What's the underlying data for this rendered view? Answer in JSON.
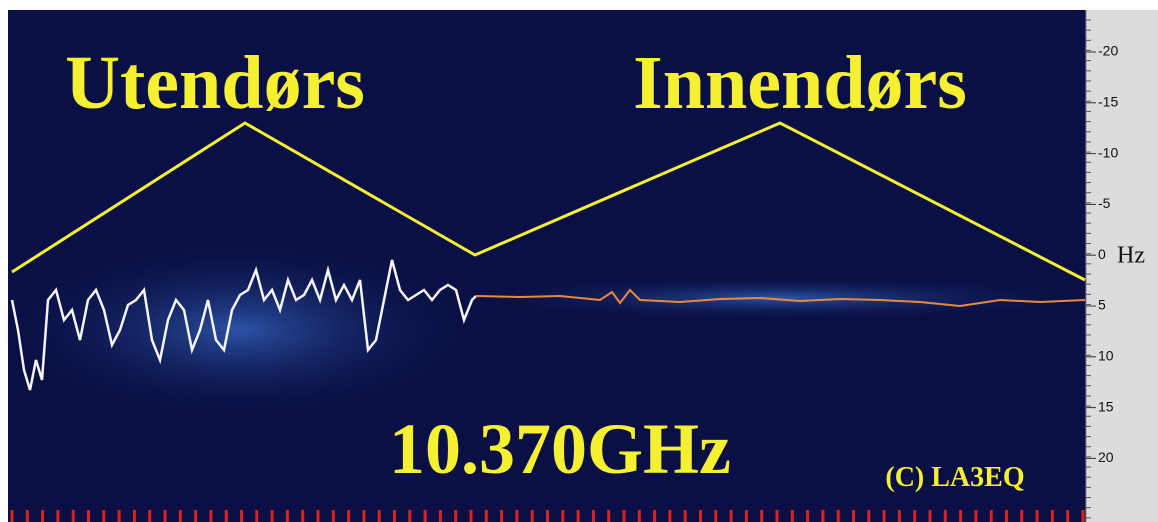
{
  "annotations": {
    "left": "Utendørs",
    "right": "Innendørs",
    "frequency": "10.370GHz",
    "copyright": "(C) LA3EQ"
  },
  "axis": {
    "ticks": [
      "-20",
      "-15",
      "-10",
      "-5",
      "0",
      "5",
      "10",
      "15",
      "20"
    ],
    "unit": "Hz"
  }
}
